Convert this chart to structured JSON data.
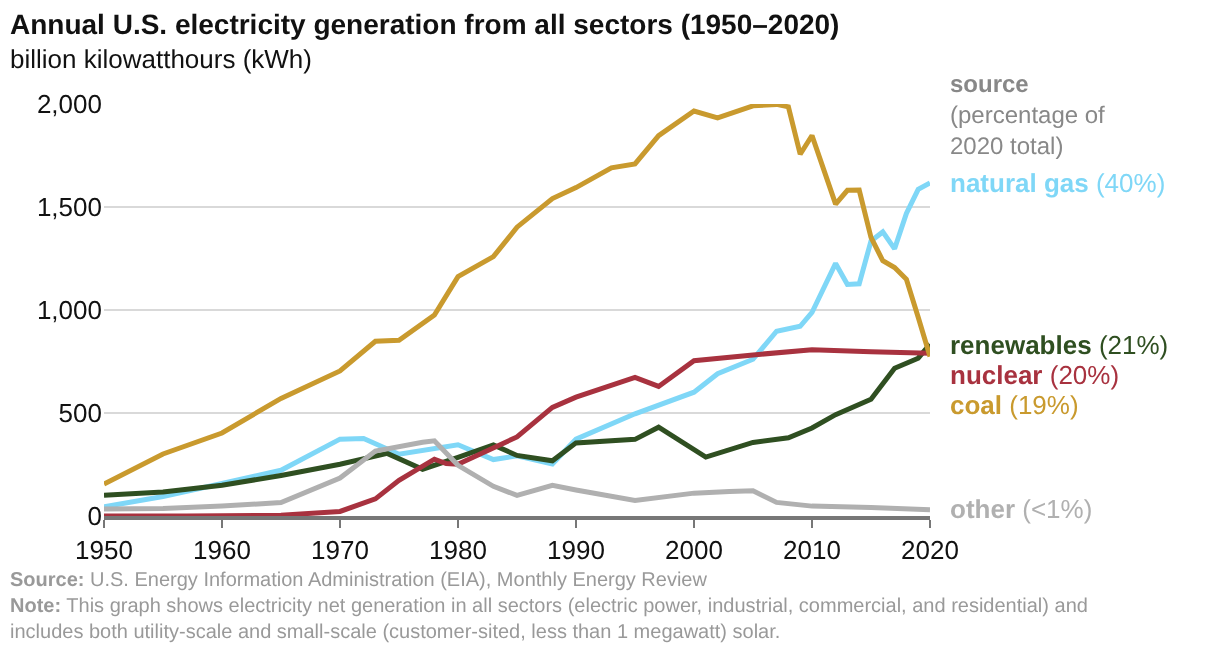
{
  "chart_data": {
    "type": "line",
    "title": "Annual U.S. electricity generation from all sectors (1950–2020)",
    "subtitle": "billion kilowatthours (kWh)",
    "legend_title": "source\n(percentage of\n2020 total)",
    "xlim": [
      1950,
      2020
    ],
    "xticks": [
      1950,
      1960,
      1970,
      1980,
      1990,
      2000,
      2010,
      2020
    ],
    "ylim": [
      0,
      2000
    ],
    "yticks": [
      {
        "value": 0,
        "label": "0"
      },
      {
        "value": 500,
        "label": "500"
      },
      {
        "value": 1000,
        "label": "1,000"
      },
      {
        "value": 1500,
        "label": "1,500"
      },
      {
        "value": 2000,
        "label": "2,000"
      }
    ],
    "grid": "y",
    "legend": "right",
    "line_style": "solid",
    "marker": "none",
    "series": [
      {
        "name": "natural gas (40%)",
        "color": "#7fd7f7",
        "x": [
          1950,
          1955,
          1960,
          1965,
          1970,
          1972,
          1975,
          1980,
          1983,
          1985,
          1988,
          1990,
          1995,
          2000,
          2002,
          2005,
          2007,
          2009,
          2010,
          2012,
          2013,
          2014,
          2015,
          2016,
          2017,
          2018,
          2019,
          2020
        ],
        "values": [
          45,
          95,
          158,
          222,
          373,
          376,
          300,
          346,
          274,
          292,
          253,
          373,
          496,
          601,
          691,
          761,
          897,
          921,
          988,
          1226,
          1124,
          1127,
          1335,
          1379,
          1297,
          1469,
          1586,
          1617
        ]
      },
      {
        "name": "renewables (21%)",
        "color": "#2f4f21",
        "x": [
          1950,
          1955,
          1960,
          1965,
          1970,
          1974,
          1977,
          1980,
          1983,
          1985,
          1988,
          1990,
          1995,
          1997,
          2001,
          2005,
          2008,
          2010,
          2012,
          2015,
          2017,
          2019,
          2020
        ],
        "values": [
          101,
          117,
          149,
          197,
          251,
          304,
          227,
          285,
          345,
          294,
          268,
          355,
          372,
          431,
          286,
          357,
          380,
          427,
          492,
          567,
          717,
          766,
          834
        ]
      },
      {
        "name": "nuclear (20%)",
        "color": "#a8323f",
        "x": [
          1950,
          1957,
          1960,
          1965,
          1970,
          1973,
          1975,
          1978,
          1979,
          1980,
          1985,
          1988,
          1990,
          1995,
          1997,
          2000,
          2005,
          2010,
          2015,
          2020
        ],
        "values": [
          0,
          0,
          1,
          4,
          22,
          83,
          173,
          276,
          255,
          251,
          384,
          527,
          577,
          673,
          629,
          754,
          782,
          807,
          797,
          790
        ]
      },
      {
        "name": "coal (19%)",
        "color": "#c99a2e",
        "x": [
          1950,
          1955,
          1960,
          1965,
          1970,
          1973,
          1975,
          1978,
          1980,
          1983,
          1985,
          1988,
          1990,
          1993,
          1995,
          1997,
          2000,
          2002,
          2005,
          2007,
          2008,
          2009,
          2010,
          2012,
          2013,
          2014,
          2015,
          2016,
          2017,
          2018,
          2019,
          2020
        ],
        "values": [
          155,
          301,
          403,
          571,
          704,
          848,
          853,
          976,
          1162,
          1259,
          1402,
          1541,
          1594,
          1690,
          1709,
          1846,
          1966,
          1933,
          1991,
          1998,
          1986,
          1756,
          1847,
          1514,
          1581,
          1582,
          1352,
          1239,
          1206,
          1149,
          965,
          774
        ]
      },
      {
        "name": "other (<1%)",
        "color": "#b0b0b0",
        "x": [
          1950,
          1955,
          1960,
          1965,
          1970,
          1973,
          1977,
          1978,
          1980,
          1983,
          1985,
          1988,
          1990,
          1995,
          2000,
          2003,
          2005,
          2007,
          2010,
          2015,
          2020
        ],
        "values": [
          34,
          37,
          48,
          65,
          184,
          315,
          358,
          365,
          246,
          144,
          100,
          149,
          126,
          75,
          111,
          119,
          122,
          66,
          48,
          41,
          30
        ]
      }
    ],
    "annotations": [
      "Source: U.S. Energy Information Administration (EIA), Monthly Energy Review",
      "Note: This graph shows electricity net generation in all sectors (electric power, industrial, commercial, and residential) and\nincludes both utility-scale and small-scale (customer-sited, less than 1 megawatt) solar."
    ]
  }
}
